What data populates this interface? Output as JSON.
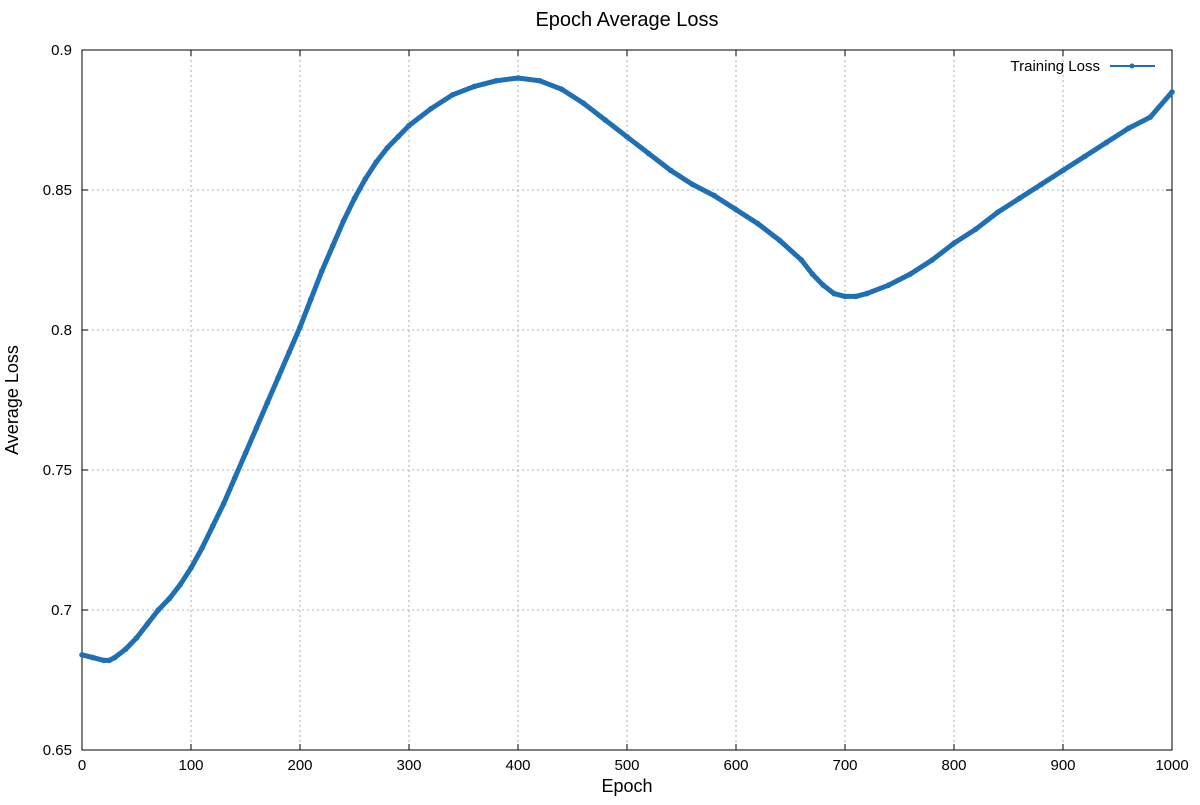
{
  "chart_data": {
    "type": "line",
    "title": "Epoch Average Loss",
    "xlabel": "Epoch",
    "ylabel": "Average Loss",
    "xlim": [
      0,
      1000
    ],
    "ylim": [
      0.65,
      0.9
    ],
    "x_ticks": [
      0,
      100,
      200,
      300,
      400,
      500,
      600,
      700,
      800,
      900,
      1000
    ],
    "y_ticks": [
      0.65,
      0.7,
      0.75,
      0.8,
      0.85,
      0.9
    ],
    "y_tick_labels": [
      "0.65",
      "0.7",
      "0.75",
      "0.8",
      "0.85",
      "0.9"
    ],
    "grid": true,
    "legend_position": "top-right",
    "series": [
      {
        "name": "Training Loss",
        "color": "#1f6fb4",
        "marker": "circle",
        "x": [
          0,
          10,
          20,
          25,
          30,
          40,
          50,
          60,
          70,
          80,
          90,
          100,
          110,
          120,
          130,
          140,
          150,
          160,
          170,
          180,
          190,
          200,
          210,
          220,
          230,
          240,
          250,
          260,
          270,
          280,
          290,
          300,
          320,
          340,
          360,
          380,
          400,
          420,
          440,
          460,
          480,
          500,
          520,
          540,
          560,
          580,
          600,
          620,
          640,
          660,
          670,
          680,
          690,
          700,
          710,
          720,
          740,
          760,
          780,
          800,
          820,
          840,
          860,
          880,
          900,
          920,
          940,
          960,
          980,
          1000
        ],
        "values": [
          0.684,
          0.683,
          0.682,
          0.682,
          0.683,
          0.686,
          0.69,
          0.695,
          0.7,
          0.704,
          0.709,
          0.715,
          0.722,
          0.73,
          0.738,
          0.747,
          0.756,
          0.765,
          0.774,
          0.783,
          0.792,
          0.801,
          0.811,
          0.821,
          0.83,
          0.839,
          0.847,
          0.854,
          0.86,
          0.865,
          0.869,
          0.873,
          0.879,
          0.884,
          0.887,
          0.889,
          0.89,
          0.889,
          0.886,
          0.881,
          0.875,
          0.869,
          0.863,
          0.857,
          0.852,
          0.848,
          0.843,
          0.838,
          0.832,
          0.825,
          0.82,
          0.816,
          0.813,
          0.812,
          0.812,
          0.813,
          0.816,
          0.82,
          0.825,
          0.831,
          0.836,
          0.842,
          0.847,
          0.852,
          0.857,
          0.862,
          0.867,
          0.872,
          0.876,
          0.885
        ]
      }
    ]
  }
}
